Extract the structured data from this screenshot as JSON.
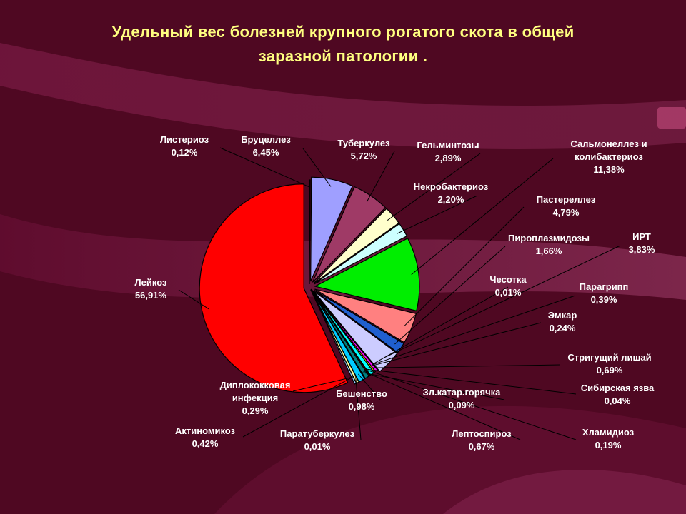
{
  "slide": {
    "title_line1": "Удельный вес болезней крупного рогатого скота   в общей",
    "title_line2": "заразной патологии ."
  },
  "colors": {
    "background": "#5a0a2a",
    "title": "#ffff80",
    "label": "#ffffff"
  },
  "chart_data": {
    "type": "pie",
    "exploded": true,
    "slices": [
      {
        "name": "Листериоз",
        "value": 0.12,
        "label": "0,12%",
        "color": "#3f1f7f"
      },
      {
        "name": "Бруцеллез",
        "value": 6.45,
        "label": "6,45%",
        "color": "#9f9fff"
      },
      {
        "name": "Туберкулез",
        "value": 5.72,
        "label": "5,72%",
        "color": "#9f3a66"
      },
      {
        "name": "Гельминтозы",
        "value": 2.89,
        "label": "2,89%",
        "color": "#ffffcc"
      },
      {
        "name": "Некробактериоз",
        "value": 2.2,
        "label": "2,20%",
        "color": "#ccffff"
      },
      {
        "name": "Сальмонеллез и колибактериоз",
        "value": 11.38,
        "label": "11,38%",
        "color": "#00ee00"
      },
      {
        "name": "Пастереллез",
        "value": 4.79,
        "label": "4,79%",
        "color": "#ff8080"
      },
      {
        "name": "Пироплазмидозы",
        "value": 1.66,
        "label": "1,66%",
        "color": "#1f5fcf"
      },
      {
        "name": "ИРТ",
        "value": 3.83,
        "label": "3,83%",
        "color": "#ccccff"
      },
      {
        "name": "Чесотка",
        "value": 0.01,
        "label": "0,01%",
        "color": "#200050"
      },
      {
        "name": "Парагрипп",
        "value": 0.39,
        "label": "0,39%",
        "color": "#ff00ff"
      },
      {
        "name": "Эмкар",
        "value": 0.24,
        "label": "0,24%",
        "color": "#ffff00"
      },
      {
        "name": "Стригущий лишай",
        "value": 0.69,
        "label": "0,69%",
        "color": "#00ffff"
      },
      {
        "name": "Сибирская язва",
        "value": 0.04,
        "label": "0,04%",
        "color": "#800080"
      },
      {
        "name": "Хламидиоз",
        "value": 0.19,
        "label": "0,19%",
        "color": "#800000"
      },
      {
        "name": "Лептоспироз",
        "value": 0.67,
        "label": "0,67%",
        "color": "#008080"
      },
      {
        "name": "Зл.катар.горячка",
        "value": 0.09,
        "label": "0,09%",
        "color": "#0000ff"
      },
      {
        "name": "Бешенство",
        "value": 0.98,
        "label": "0,98%",
        "color": "#00ccff"
      },
      {
        "name": "Паратуберкулез",
        "value": 0.01,
        "label": "0,01%",
        "color": "#ccffcc"
      },
      {
        "name": "Актиномикоз",
        "value": 0.42,
        "label": "0,42%",
        "color": "#ffff99"
      },
      {
        "name": "Диплококковая инфекция",
        "value": 0.29,
        "label": "0,29%",
        "color": "#99ccff"
      },
      {
        "name": "Лейкоз",
        "value": 56.91,
        "label": "56,91%",
        "color": "#ff0000"
      }
    ]
  }
}
